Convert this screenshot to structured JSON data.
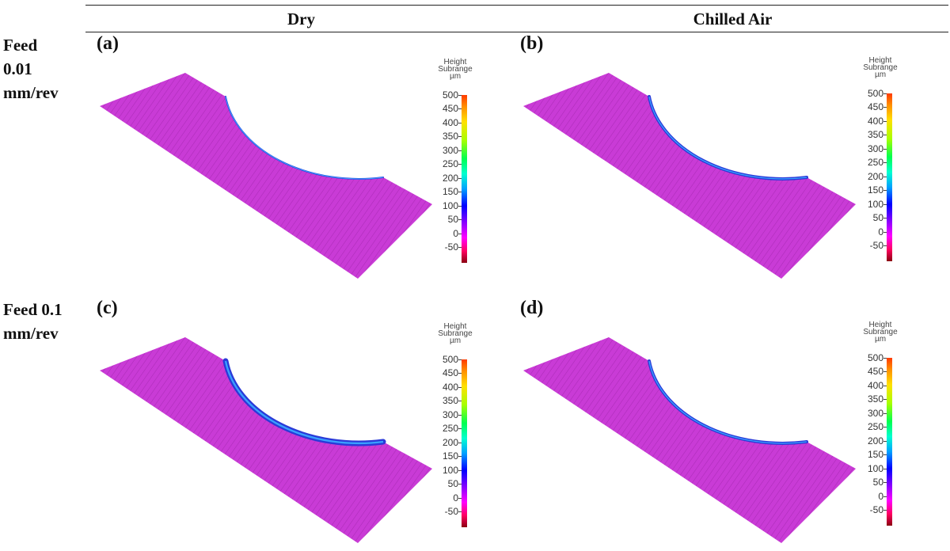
{
  "columns": [
    "Dry",
    "Chilled Air"
  ],
  "rows": [
    "Feed\n0.01\nmm/rev",
    "Feed 0.1\nmm/rev"
  ],
  "panels": [
    {
      "label": "(a)",
      "row": 0,
      "col": 0,
      "edge": "thin"
    },
    {
      "label": "(b)",
      "row": 0,
      "col": 1,
      "edge": "medium"
    },
    {
      "label": "(c)",
      "row": 1,
      "col": 0,
      "edge": "thick"
    },
    {
      "label": "(d)",
      "row": 1,
      "col": 1,
      "edge": "medium"
    }
  ],
  "colorbar": {
    "title": [
      "Height",
      "Subrange",
      "µm"
    ],
    "ticks": [
      "500",
      "450",
      "400",
      "350",
      "300",
      "250",
      "200",
      "150",
      "100",
      "50",
      "0",
      "-50"
    ]
  }
}
